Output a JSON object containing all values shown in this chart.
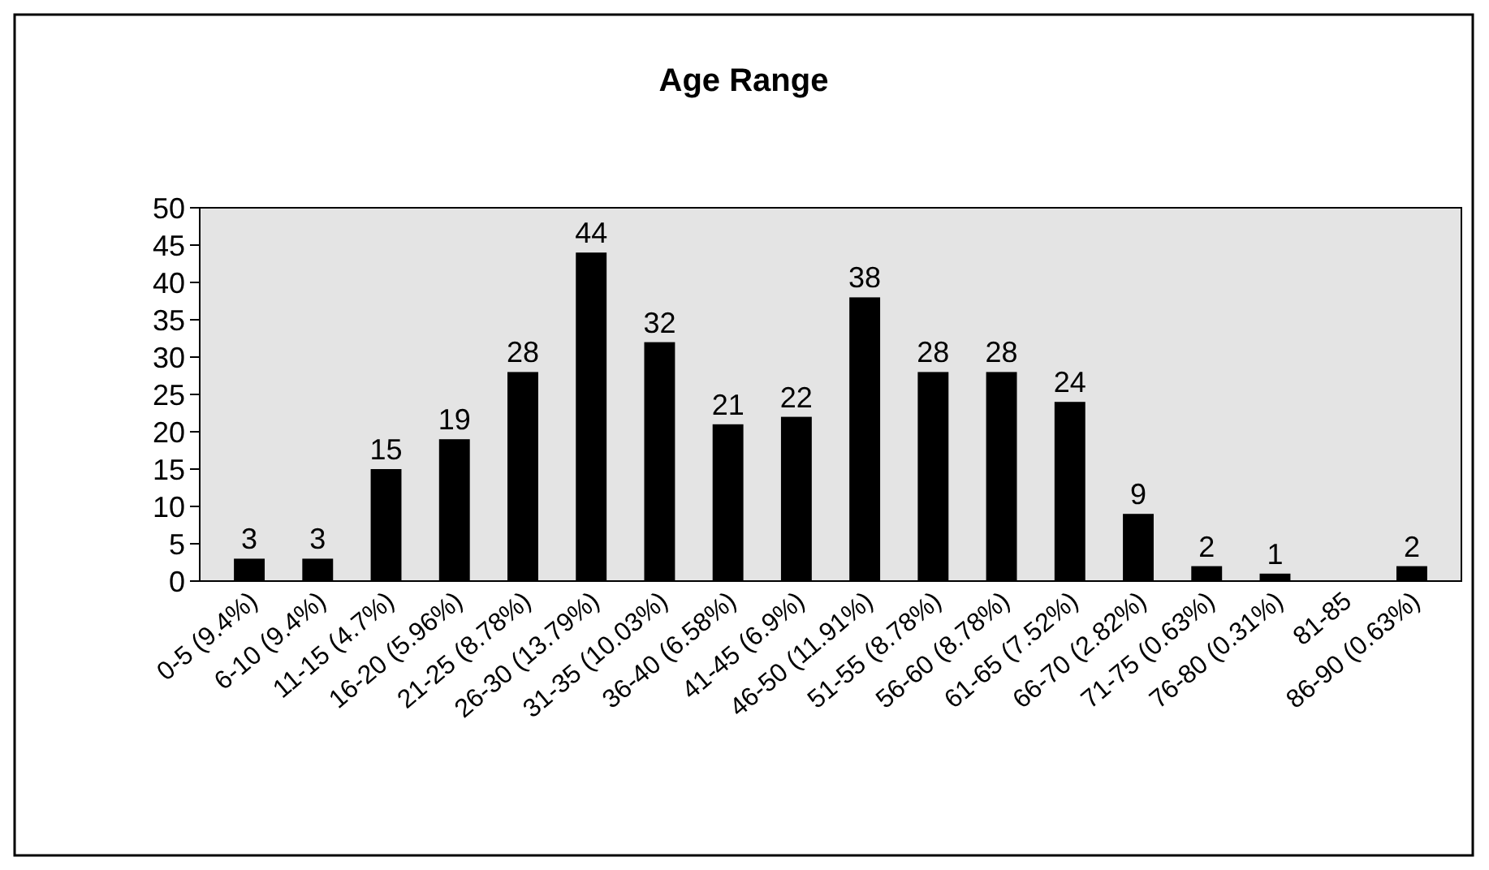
{
  "chart_data": {
    "type": "bar",
    "title": "Age Range",
    "categories": [
      "0-5 (9.4%)",
      "6-10 (9.4%)",
      "11-15 (4.7%)",
      "16-20 (5.96%)",
      "21-25 (8.78%)",
      "26-30 (13.79%)",
      "31-35 (10.03%)",
      "36-40 (6.58%)",
      "41-45 (6.9%)",
      "46-50 (11.91%)",
      "51-55 (8.78%)",
      "56-60 (8.78%)",
      "61-65 (7.52%)",
      "66-70 (2.82%)",
      "71-75 (0.63%)",
      "76-80 (0.31%)",
      "81-85",
      "86-90 (0.63%)"
    ],
    "values": [
      3,
      3,
      15,
      19,
      28,
      44,
      32,
      21,
      22,
      38,
      28,
      28,
      24,
      9,
      2,
      1,
      null,
      2
    ],
    "color": "#000000",
    "ylim": [
      0,
      50
    ],
    "yticks": [
      0,
      5,
      10,
      15,
      20,
      25,
      30,
      35,
      40,
      45,
      50
    ],
    "grid": false,
    "data_labels": true
  }
}
